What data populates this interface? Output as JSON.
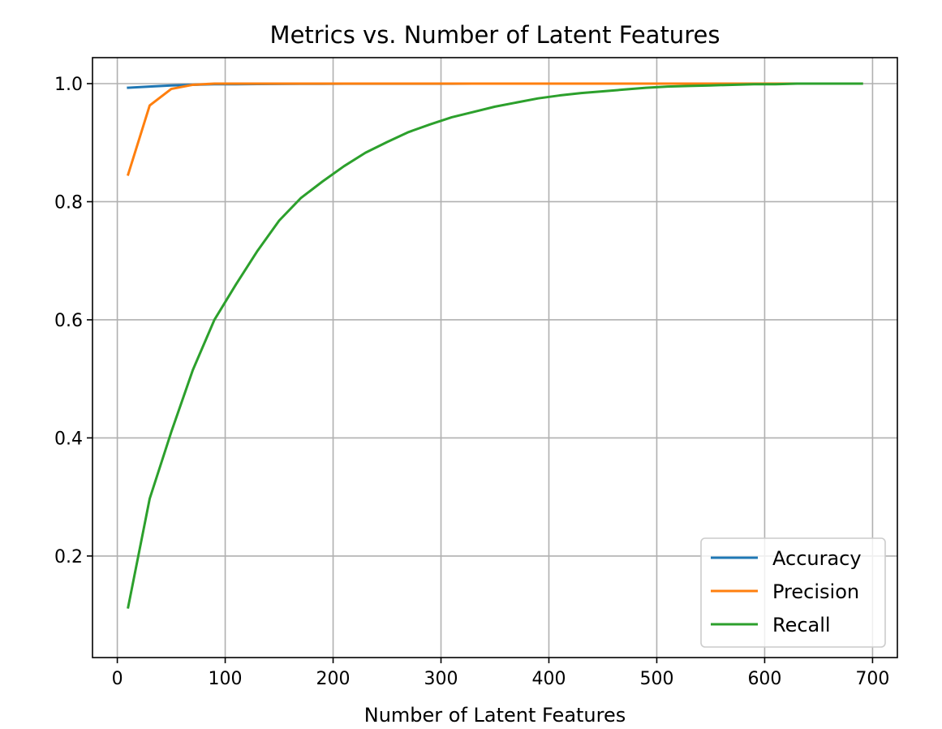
{
  "chart_data": {
    "type": "line",
    "title": "Metrics vs. Number of Latent Features",
    "xlabel": "Number of Latent Features",
    "ylabel": "",
    "xlim": [
      -23,
      723
    ],
    "ylim": [
      0.028,
      1.044
    ],
    "xticks": [
      0,
      100,
      200,
      300,
      400,
      500,
      600,
      700
    ],
    "yticks": [
      0.2,
      0.4,
      0.6,
      0.8,
      1.0
    ],
    "xtick_labels": [
      "0",
      "100",
      "200",
      "300",
      "400",
      "500",
      "600",
      "700"
    ],
    "ytick_labels": [
      "0.2",
      "0.4",
      "0.6",
      "0.8",
      "1.0"
    ],
    "grid": true,
    "legend_position": "lower-right",
    "series": [
      {
        "name": "Accuracy",
        "color": "#1f77b4",
        "x": [
          10,
          30,
          50,
          70,
          90,
          110,
          130,
          150,
          170,
          190,
          210,
          230,
          250,
          270,
          290,
          310,
          330,
          350,
          370,
          390,
          410,
          430,
          450,
          470,
          490,
          510,
          530,
          550,
          570,
          590,
          610,
          630,
          650,
          670,
          690
        ],
        "y": [
          0.993,
          0.995,
          0.997,
          0.998,
          0.999,
          0.999,
          0.9993,
          0.9995,
          0.9996,
          0.9997,
          0.9998,
          0.9998,
          0.9999,
          0.9999,
          0.9999,
          0.9999,
          1.0,
          1.0,
          1.0,
          1.0,
          1.0,
          1.0,
          1.0,
          1.0,
          1.0,
          1.0,
          1.0,
          1.0,
          1.0,
          1.0,
          1.0,
          1.0,
          1.0,
          1.0,
          1.0
        ]
      },
      {
        "name": "Precision",
        "color": "#ff7f0e",
        "x": [
          10,
          30,
          50,
          70,
          90,
          110,
          130,
          150,
          170,
          190,
          210,
          230,
          250,
          270,
          290,
          310,
          330,
          350,
          370,
          390,
          410,
          430,
          450,
          470,
          490,
          510,
          530,
          550,
          570,
          590,
          610,
          630,
          650,
          670,
          690
        ],
        "y": [
          0.846,
          0.963,
          0.991,
          0.998,
          1.0,
          1.0,
          1.0,
          1.0,
          1.0,
          1.0,
          1.0,
          1.0,
          1.0,
          1.0,
          1.0,
          1.0,
          1.0,
          1.0,
          1.0,
          1.0,
          1.0,
          1.0,
          1.0,
          1.0,
          1.0,
          1.0,
          1.0,
          1.0,
          1.0,
          1.0,
          1.0,
          1.0,
          1.0,
          1.0,
          1.0
        ]
      },
      {
        "name": "Recall",
        "color": "#2ca02c",
        "x": [
          10,
          30,
          50,
          70,
          90,
          110,
          130,
          150,
          170,
          190,
          210,
          230,
          250,
          270,
          290,
          310,
          330,
          350,
          370,
          390,
          410,
          430,
          450,
          470,
          490,
          510,
          530,
          550,
          570,
          590,
          610,
          630,
          650,
          670,
          690
        ],
        "y": [
          0.113,
          0.297,
          0.41,
          0.515,
          0.6,
          0.66,
          0.717,
          0.768,
          0.806,
          0.834,
          0.86,
          0.883,
          0.901,
          0.918,
          0.931,
          0.943,
          0.952,
          0.961,
          0.968,
          0.975,
          0.98,
          0.984,
          0.987,
          0.99,
          0.993,
          0.995,
          0.996,
          0.997,
          0.998,
          0.999,
          0.999,
          1.0,
          1.0,
          1.0,
          1.0
        ]
      }
    ]
  }
}
